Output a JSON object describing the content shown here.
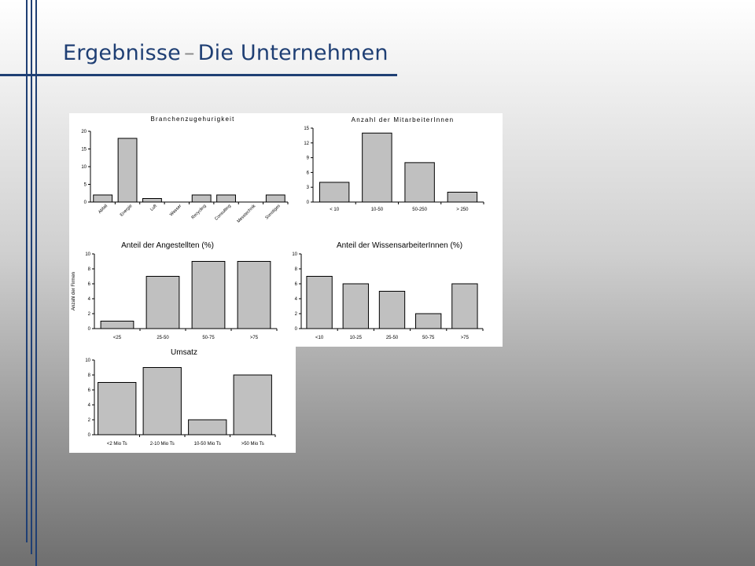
{
  "slide": {
    "title_main": "Ergebnisse",
    "title_separator": "–",
    "title_sub": "Die Unternehmen",
    "accent_color": "#1f3f74"
  },
  "chart_data": [
    {
      "id": "branche",
      "type": "bar",
      "title": "Branchenzugehurigkeit",
      "categories": [
        "Abfall",
        "Energie",
        "Luft",
        "Wasser",
        "Recycling",
        "Consulting",
        "Messtechnik",
        "Sonstiges"
      ],
      "values": [
        2,
        18,
        1,
        0,
        2,
        2,
        0,
        2
      ],
      "ylim": [
        0,
        20
      ],
      "yticks": [
        0,
        5,
        10,
        15,
        20
      ],
      "xlabel": "",
      "ylabel": "",
      "rotated_labels": true,
      "grid": false
    },
    {
      "id": "mitarbeiter",
      "type": "bar",
      "title": "Anzahl der MitarbeiterInnen",
      "categories": [
        "< 10",
        "10-50",
        "50-250",
        "> 250"
      ],
      "values": [
        4,
        14,
        8,
        2
      ],
      "ylim": [
        0,
        15
      ],
      "yticks": [
        0,
        3,
        6,
        9,
        12,
        15
      ],
      "xlabel": "",
      "ylabel": "",
      "grid": false
    },
    {
      "id": "angestellte",
      "type": "bar",
      "title": "Anteil der Angestellten (%)",
      "categories": [
        "<25",
        "25-50",
        "50-75",
        ">75"
      ],
      "values": [
        1,
        7,
        9,
        9
      ],
      "ylim": [
        0,
        10
      ],
      "yticks": [
        0,
        2,
        4,
        6,
        8,
        10
      ],
      "xlabel": "",
      "ylabel": "Anzahl der Firmen",
      "grid": false
    },
    {
      "id": "wissensarbeiter",
      "type": "bar",
      "title": "Anteil der WissensarbeiterInnen (%)",
      "categories": [
        "<10",
        "10-25",
        "25-50",
        "50-75",
        ">75"
      ],
      "values": [
        7,
        6,
        5,
        2,
        6
      ],
      "ylim": [
        0,
        10
      ],
      "yticks": [
        0,
        2,
        4,
        6,
        8,
        10
      ],
      "xlabel": "",
      "ylabel": "",
      "grid": false
    },
    {
      "id": "umsatz",
      "type": "bar",
      "title": "Umsatz",
      "categories": [
        "<2 Mio Ts",
        "2-10 Mio Ts",
        "10-50 Mio Ts",
        ">50 Mio Ts"
      ],
      "values": [
        7,
        9,
        2,
        8
      ],
      "ylim": [
        0,
        10
      ],
      "yticks": [
        0,
        2,
        4,
        6,
        8,
        10
      ],
      "xlabel": "",
      "ylabel": "",
      "grid": false
    }
  ]
}
